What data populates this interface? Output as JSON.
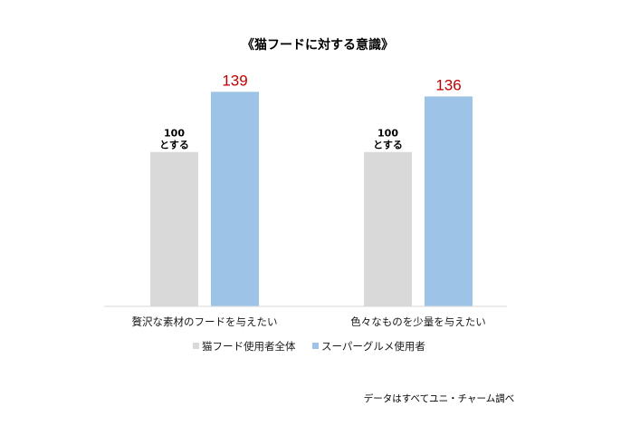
{
  "chart_data": {
    "type": "bar",
    "title": "《猫フードに対する意識》",
    "categories": [
      "贅沢な素材のフードを与えたい",
      "色々なものを少量を与えたい"
    ],
    "series": [
      {
        "name": "猫フード使用者全体",
        "values": [
          100,
          100
        ],
        "color": "#d9d9d9",
        "label_lines": [
          "100",
          "とする"
        ],
        "label_color": "#000000"
      },
      {
        "name": "スーパーグルメ使用者",
        "values": [
          139,
          136
        ],
        "color": "#9dc3e6",
        "label_color": "#c00000"
      }
    ],
    "ylim": [
      0,
      175
    ],
    "grid": false,
    "legend_position": "bottom",
    "source_note": "データはすべてユニ・チャーム調べ"
  }
}
